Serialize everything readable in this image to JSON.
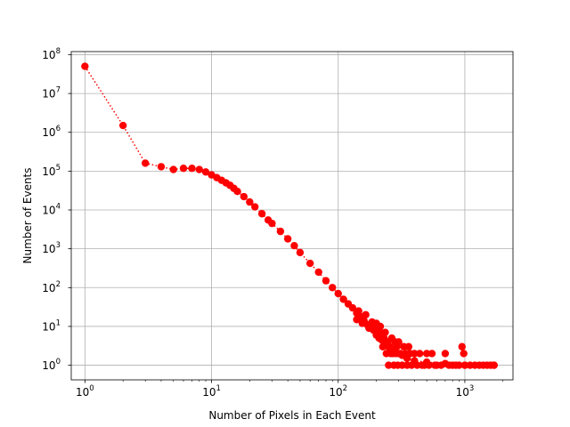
{
  "chart_data": {
    "type": "scatter",
    "title": "",
    "xlabel": "Number of Pixels in Each Event",
    "ylabel": "Number of Events",
    "xscale": "log",
    "yscale": "log",
    "xlim": [
      0.78,
      2400
    ],
    "ylim": [
      0.42,
      120000000
    ],
    "grid": true,
    "xticks": [
      {
        "base": "10",
        "exp": "0",
        "value": 1
      },
      {
        "base": "10",
        "exp": "1",
        "value": 10
      },
      {
        "base": "10",
        "exp": "2",
        "value": 100
      },
      {
        "base": "10",
        "exp": "3",
        "value": 1000
      }
    ],
    "yticks": [
      {
        "base": "10",
        "exp": "0",
        "value": 1
      },
      {
        "base": "10",
        "exp": "1",
        "value": 10
      },
      {
        "base": "10",
        "exp": "2",
        "value": 100
      },
      {
        "base": "10",
        "exp": "3",
        "value": 1000
      },
      {
        "base": "10",
        "exp": "4",
        "value": 10000
      },
      {
        "base": "10",
        "exp": "5",
        "value": 100000
      },
      {
        "base": "10",
        "exp": "6",
        "value": 1000000
      },
      {
        "base": "10",
        "exp": "7",
        "value": 10000000
      },
      {
        "base": "10",
        "exp": "8",
        "value": 100000000
      }
    ],
    "series": [
      {
        "color": "#ff0000",
        "marker": "circle",
        "linestyle": "dotted",
        "points": [
          [
            1,
            50000000
          ],
          [
            2,
            1500000
          ],
          [
            3,
            160000
          ],
          [
            4,
            130000
          ],
          [
            5,
            110000
          ],
          [
            6,
            118000
          ],
          [
            7,
            118000
          ],
          [
            8,
            110000
          ],
          [
            9,
            95000
          ],
          [
            10,
            80000
          ],
          [
            11,
            68000
          ],
          [
            12,
            58000
          ],
          [
            13,
            50000
          ],
          [
            14,
            43000
          ],
          [
            15,
            36000
          ],
          [
            16,
            30000
          ],
          [
            18,
            22000
          ],
          [
            20,
            16000
          ],
          [
            22,
            12000
          ],
          [
            25,
            8000
          ],
          [
            28,
            5500
          ],
          [
            30,
            4500
          ],
          [
            35,
            2800
          ],
          [
            40,
            1800
          ],
          [
            45,
            1200
          ],
          [
            50,
            800
          ],
          [
            60,
            420
          ],
          [
            70,
            250
          ],
          [
            80,
            150
          ],
          [
            90,
            100
          ],
          [
            100,
            70
          ],
          [
            110,
            50
          ],
          [
            120,
            38
          ],
          [
            130,
            30
          ],
          [
            140,
            22
          ],
          [
            150,
            18
          ],
          [
            160,
            14
          ],
          [
            170,
            11
          ],
          [
            180,
            10
          ],
          [
            190,
            8
          ],
          [
            200,
            6
          ],
          [
            210,
            5
          ],
          [
            220,
            4.5
          ],
          [
            230,
            4
          ],
          [
            240,
            3.5
          ],
          [
            250,
            3
          ],
          [
            260,
            2.5
          ],
          [
            280,
            2.2
          ],
          [
            300,
            2
          ],
          [
            320,
            1.8
          ],
          [
            350,
            1.5
          ],
          [
            400,
            1.3
          ],
          [
            500,
            1.2
          ],
          [
            700,
            1.1
          ],
          [
            1000,
            1
          ],
          [
            1700,
            1
          ]
        ],
        "scatter_points": [
          [
            140,
            15
          ],
          [
            145,
            25
          ],
          [
            155,
            12
          ],
          [
            165,
            20
          ],
          [
            175,
            9
          ],
          [
            185,
            13
          ],
          [
            195,
            10
          ],
          [
            200,
            12
          ],
          [
            205,
            6
          ],
          [
            210,
            8
          ],
          [
            215,
            10
          ],
          [
            220,
            6
          ],
          [
            225,
            3
          ],
          [
            230,
            5
          ],
          [
            235,
            7
          ],
          [
            240,
            2
          ],
          [
            245,
            4
          ],
          [
            250,
            1
          ],
          [
            255,
            3
          ],
          [
            260,
            2
          ],
          [
            265,
            5
          ],
          [
            270,
            2
          ],
          [
            275,
            1
          ],
          [
            280,
            4
          ],
          [
            285,
            2
          ],
          [
            290,
            3
          ],
          [
            295,
            1
          ],
          [
            300,
            4
          ],
          [
            310,
            2
          ],
          [
            320,
            1
          ],
          [
            330,
            3
          ],
          [
            340,
            2
          ],
          [
            350,
            1
          ],
          [
            360,
            3
          ],
          [
            370,
            2
          ],
          [
            380,
            1
          ],
          [
            400,
            2
          ],
          [
            420,
            1
          ],
          [
            440,
            2
          ],
          [
            460,
            1
          ],
          [
            480,
            1
          ],
          [
            500,
            2
          ],
          [
            520,
            1
          ],
          [
            550,
            2
          ],
          [
            580,
            1
          ],
          [
            600,
            1
          ],
          [
            650,
            1
          ],
          [
            700,
            2
          ],
          [
            750,
            1
          ],
          [
            800,
            1
          ],
          [
            850,
            1
          ],
          [
            900,
            1
          ],
          [
            950,
            3
          ],
          [
            980,
            2
          ],
          [
            1000,
            1
          ],
          [
            1100,
            1
          ],
          [
            1200,
            1
          ],
          [
            1300,
            1
          ],
          [
            1400,
            1
          ],
          [
            1500,
            1
          ],
          [
            1600,
            1
          ],
          [
            1700,
            1
          ]
        ]
      }
    ]
  }
}
